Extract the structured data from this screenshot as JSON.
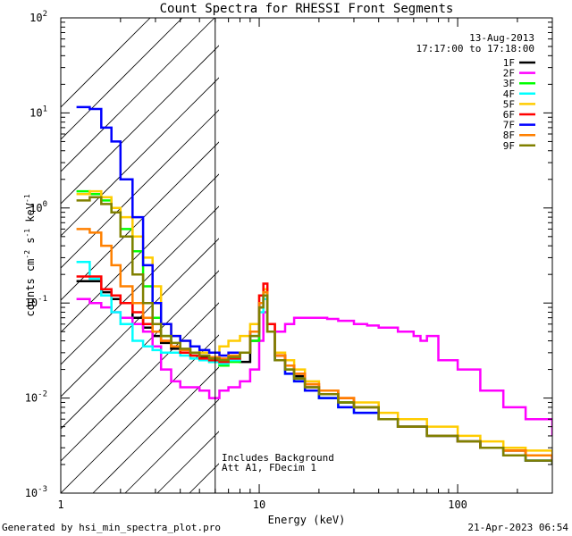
{
  "chart_data": {
    "type": "line",
    "title": "Count Spectra for RHESSI Front Segments",
    "xlabel": "Energy (keV)",
    "ylabel": "counts cm-2 s-1 keV-1",
    "xscale": "log",
    "yscale": "log",
    "xlim": [
      1,
      300
    ],
    "ylim": [
      0.001,
      100
    ],
    "x_ticks": [
      {
        "value": 1,
        "label": "1"
      },
      {
        "value": 10,
        "label": "10"
      },
      {
        "value": 100,
        "label": "100"
      }
    ],
    "y_ticks": [
      {
        "value": 0.001,
        "base": "10",
        "exp": "-3"
      },
      {
        "value": 0.01,
        "base": "10",
        "exp": "-2"
      },
      {
        "value": 0.1,
        "base": "10",
        "exp": "-1"
      },
      {
        "value": 1,
        "base": "10",
        "exp": "0"
      },
      {
        "value": 10,
        "base": "10",
        "exp": "1"
      },
      {
        "value": 100,
        "base": "10",
        "exp": "2"
      }
    ],
    "hatched_region_upper_energy": 6,
    "date": "13-Aug-2013",
    "time_range": "17:17:00 to 17:18:00",
    "notes": [
      "Includes Background",
      "Att A1, FDecim 1"
    ],
    "series": [
      {
        "name": "1F",
        "color": "#000000",
        "x": [
          1.2,
          1.4,
          1.6,
          1.8,
          2.0,
          2.3,
          2.6,
          2.9,
          3.2,
          3.6,
          4.0,
          4.5,
          5.0,
          5.6,
          6.3,
          7.0,
          8.0,
          9.0,
          10.0,
          10.5,
          11.0,
          12.0,
          13.5,
          15,
          17,
          20,
          25,
          30,
          40,
          50,
          70,
          100,
          130,
          170,
          220,
          300
        ],
        "y": [
          0.17,
          0.17,
          0.13,
          0.11,
          0.1,
          0.07,
          0.055,
          0.045,
          0.038,
          0.033,
          0.03,
          0.028,
          0.027,
          0.025,
          0.024,
          0.025,
          0.024,
          0.04,
          0.09,
          0.12,
          0.05,
          0.028,
          0.022,
          0.017,
          0.013,
          0.011,
          0.009,
          0.008,
          0.006,
          0.005,
          0.004,
          0.0035,
          0.003,
          0.0028,
          0.0025,
          0.0022
        ]
      },
      {
        "name": "2F",
        "color": "#ff00ff",
        "x": [
          1.2,
          1.4,
          1.6,
          1.8,
          2.0,
          2.3,
          2.6,
          2.9,
          3.2,
          3.6,
          4.0,
          4.5,
          5.0,
          5.6,
          6.3,
          7.0,
          8.0,
          9.0,
          10.0,
          10.5,
          11.0,
          12.0,
          13.5,
          15,
          17,
          20,
          22,
          25,
          30,
          35,
          40,
          50,
          60,
          65,
          70,
          80,
          100,
          130,
          170,
          220,
          300
        ],
        "y": [
          0.11,
          0.1,
          0.09,
          0.08,
          0.07,
          0.06,
          0.05,
          0.035,
          0.02,
          0.015,
          0.013,
          0.013,
          0.012,
          0.01,
          0.012,
          0.013,
          0.015,
          0.02,
          0.04,
          0.08,
          0.06,
          0.05,
          0.06,
          0.07,
          0.07,
          0.07,
          0.068,
          0.065,
          0.06,
          0.058,
          0.055,
          0.05,
          0.045,
          0.04,
          0.045,
          0.025,
          0.02,
          0.012,
          0.008,
          0.006,
          0.004
        ]
      },
      {
        "name": "3F",
        "color": "#00ff00",
        "x": [
          1.2,
          1.4,
          1.6,
          1.8,
          2.0,
          2.3,
          2.6,
          2.9,
          3.2,
          3.6,
          4.0,
          4.5,
          5.0,
          5.6,
          6.3,
          7.0,
          8.0,
          9.0,
          10.0,
          10.5,
          11.0,
          12.0,
          13.5,
          15,
          17,
          20,
          25,
          30,
          40,
          50,
          70,
          100,
          130,
          170,
          220,
          300
        ],
        "y": [
          1.5,
          1.4,
          1.2,
          0.9,
          0.6,
          0.35,
          0.15,
          0.07,
          0.045,
          0.035,
          0.03,
          0.028,
          0.025,
          0.024,
          0.022,
          0.024,
          0.03,
          0.04,
          0.1,
          0.13,
          0.05,
          0.025,
          0.02,
          0.016,
          0.012,
          0.01,
          0.009,
          0.008,
          0.006,
          0.005,
          0.004,
          0.0035,
          0.003,
          0.0025,
          0.0022,
          0.002
        ]
      },
      {
        "name": "4F",
        "color": "#00ffff",
        "x": [
          1.2,
          1.4,
          1.6,
          1.8,
          2.0,
          2.3,
          2.6,
          2.9,
          3.2,
          3.6,
          4.0,
          4.5,
          5.0,
          5.6,
          6.3,
          7.0,
          8.0,
          9.0,
          10.0,
          10.5,
          11.0,
          12.0,
          13.5,
          15,
          17,
          20,
          25,
          30,
          40,
          50,
          70,
          100,
          130,
          170,
          220,
          300
        ],
        "y": [
          0.27,
          0.18,
          0.12,
          0.08,
          0.06,
          0.04,
          0.035,
          0.032,
          0.03,
          0.03,
          0.028,
          0.026,
          0.025,
          0.024,
          0.023,
          0.025,
          0.03,
          0.045,
          0.08,
          0.11,
          0.05,
          0.025,
          0.018,
          0.015,
          0.012,
          0.01,
          0.008,
          0.007,
          0.006,
          0.005,
          0.004,
          0.0035,
          0.003,
          0.0025,
          0.0022,
          0.002
        ]
      },
      {
        "name": "5F",
        "color": "#ffcc00",
        "x": [
          1.2,
          1.4,
          1.6,
          1.8,
          2.0,
          2.3,
          2.6,
          2.9,
          3.2,
          3.6,
          4.0,
          4.5,
          5.0,
          5.6,
          6.3,
          7.0,
          8.0,
          9.0,
          10.0,
          10.5,
          11.0,
          12.0,
          13.5,
          15,
          17,
          20,
          25,
          30,
          40,
          50,
          70,
          100,
          130,
          170,
          220,
          300
        ],
        "y": [
          1.4,
          1.5,
          1.3,
          1.0,
          0.8,
          0.5,
          0.3,
          0.15,
          0.06,
          0.045,
          0.04,
          0.035,
          0.03,
          0.03,
          0.035,
          0.04,
          0.045,
          0.06,
          0.12,
          0.14,
          0.06,
          0.03,
          0.025,
          0.02,
          0.015,
          0.012,
          0.01,
          0.009,
          0.007,
          0.006,
          0.005,
          0.004,
          0.0035,
          0.003,
          0.0028,
          0.0025
        ]
      },
      {
        "name": "6F",
        "color": "#ff0000",
        "x": [
          1.2,
          1.4,
          1.6,
          1.8,
          2.0,
          2.3,
          2.6,
          2.9,
          3.2,
          3.6,
          4.0,
          4.5,
          5.0,
          5.6,
          6.3,
          7.0,
          8.0,
          9.0,
          10.0,
          10.5,
          11.0,
          12.0,
          13.5,
          15,
          17,
          20,
          25,
          30,
          40,
          50,
          70,
          100,
          130,
          170,
          220,
          300
        ],
        "y": [
          0.19,
          0.19,
          0.14,
          0.12,
          0.1,
          0.08,
          0.06,
          0.05,
          0.04,
          0.035,
          0.03,
          0.028,
          0.026,
          0.025,
          0.024,
          0.026,
          0.03,
          0.05,
          0.12,
          0.16,
          0.06,
          0.028,
          0.022,
          0.018,
          0.014,
          0.012,
          0.01,
          0.008,
          0.006,
          0.005,
          0.004,
          0.0035,
          0.003,
          0.0028,
          0.0025,
          0.0022
        ]
      },
      {
        "name": "7F",
        "color": "#0000ff",
        "x": [
          1.2,
          1.4,
          1.6,
          1.8,
          2.0,
          2.3,
          2.6,
          2.9,
          3.2,
          3.6,
          4.0,
          4.5,
          5.0,
          5.6,
          6.3,
          7.0,
          8.0,
          9.0,
          10.0,
          10.5,
          11.0,
          12.0,
          13.5,
          15,
          17,
          20,
          25,
          30,
          40,
          50,
          70,
          100,
          130,
          170,
          220,
          300
        ],
        "y": [
          11.5,
          11.0,
          7.0,
          5.0,
          2.0,
          0.8,
          0.25,
          0.1,
          0.06,
          0.045,
          0.04,
          0.035,
          0.032,
          0.03,
          0.028,
          0.03,
          0.03,
          0.05,
          0.1,
          0.12,
          0.05,
          0.025,
          0.018,
          0.015,
          0.012,
          0.01,
          0.008,
          0.007,
          0.006,
          0.005,
          0.004,
          0.0035,
          0.003,
          0.0025,
          0.0022,
          0.002
        ]
      },
      {
        "name": "8F",
        "color": "#ff8000",
        "x": [
          1.2,
          1.4,
          1.6,
          1.8,
          2.0,
          2.3,
          2.6,
          2.9,
          3.2,
          3.6,
          4.0,
          4.5,
          5.0,
          5.6,
          6.3,
          7.0,
          8.0,
          9.0,
          10.0,
          10.5,
          11.0,
          12.0,
          13.5,
          15,
          17,
          20,
          25,
          30,
          40,
          50,
          70,
          100,
          130,
          170,
          220,
          300
        ],
        "y": [
          0.6,
          0.55,
          0.4,
          0.25,
          0.15,
          0.1,
          0.07,
          0.05,
          0.04,
          0.035,
          0.032,
          0.03,
          0.028,
          0.027,
          0.026,
          0.028,
          0.03,
          0.05,
          0.1,
          0.13,
          0.05,
          0.028,
          0.022,
          0.018,
          0.014,
          0.012,
          0.01,
          0.008,
          0.006,
          0.005,
          0.004,
          0.0035,
          0.003,
          0.0028,
          0.0025,
          0.0022
        ]
      },
      {
        "name": "9F",
        "color": "#808000",
        "x": [
          1.2,
          1.4,
          1.6,
          1.8,
          2.0,
          2.3,
          2.6,
          2.9,
          3.2,
          3.6,
          4.0,
          4.5,
          5.0,
          5.6,
          6.3,
          7.0,
          8.0,
          9.0,
          10.0,
          10.5,
          11.0,
          12.0,
          13.5,
          15,
          17,
          20,
          25,
          30,
          40,
          50,
          70,
          100,
          130,
          170,
          220,
          300
        ],
        "y": [
          1.2,
          1.3,
          1.1,
          0.9,
          0.5,
          0.2,
          0.1,
          0.06,
          0.045,
          0.038,
          0.033,
          0.03,
          0.028,
          0.026,
          0.025,
          0.027,
          0.03,
          0.045,
          0.09,
          0.12,
          0.05,
          0.025,
          0.02,
          0.016,
          0.013,
          0.011,
          0.009,
          0.008,
          0.006,
          0.005,
          0.004,
          0.0035,
          0.003,
          0.0025,
          0.0022,
          0.002
        ]
      }
    ]
  },
  "footer": {
    "generated_by": "Generated by hsi_min_spectra_plot.pro",
    "date": "21-Apr-2023 06:54"
  }
}
